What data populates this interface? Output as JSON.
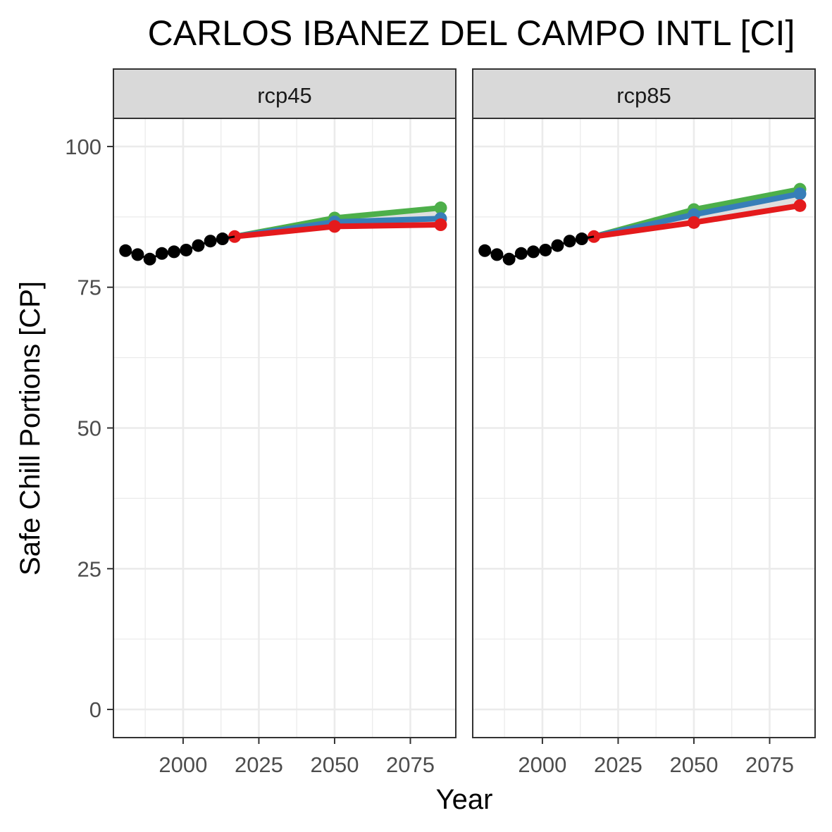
{
  "chart_data": {
    "type": "line",
    "title": "CARLOS IBANEZ DEL CAMPO INTL [CI]",
    "xlabel": "Year",
    "ylabel": "Safe Chill Portions [CP]",
    "xlim": [
      1977,
      2090
    ],
    "ylim": [
      -5,
      105
    ],
    "x_ticks": [
      2000,
      2025,
      2050,
      2075
    ],
    "y_ticks": [
      0,
      25,
      50,
      75,
      100
    ],
    "x_tick_labels": [
      "2000",
      "2025",
      "2050",
      "2075"
    ],
    "y_tick_labels": [
      "0",
      "25",
      "50",
      "75",
      "100"
    ],
    "grid": true,
    "colors": {
      "historic": "#000000",
      "green": "#4DAF4A",
      "blue": "#377EB8",
      "red": "#E41A1C",
      "ribbon": "#D9D9D9",
      "strip_fill": "#D9D9D9",
      "panel_border": "#333333",
      "grid": "#EBEBEB"
    },
    "panels": [
      {
        "label": "rcp45",
        "historic": {
          "x": [
            1981,
            1985,
            1989,
            1993,
            1997,
            2001,
            2005,
            2009,
            2013,
            2017
          ],
          "values": [
            81.5,
            80.8,
            80.0,
            81.0,
            81.3,
            81.6,
            82.4,
            83.2,
            83.6,
            84.0
          ]
        },
        "series": [
          {
            "name": "green",
            "x": [
              2017,
              2050,
              2085
            ],
            "values": [
              84.0,
              87.3,
              89.1
            ]
          },
          {
            "name": "blue",
            "x": [
              2017,
              2050,
              2085
            ],
            "values": [
              84.0,
              86.6,
              87.2
            ]
          },
          {
            "name": "red",
            "x": [
              2017,
              2050,
              2085
            ],
            "values": [
              84.0,
              85.8,
              86.1
            ]
          }
        ]
      },
      {
        "label": "rcp85",
        "historic": {
          "x": [
            1981,
            1985,
            1989,
            1993,
            1997,
            2001,
            2005,
            2009,
            2013,
            2017
          ],
          "values": [
            81.5,
            80.8,
            80.0,
            81.0,
            81.3,
            81.6,
            82.4,
            83.2,
            83.6,
            84.0
          ]
        },
        "series": [
          {
            "name": "green",
            "x": [
              2017,
              2050,
              2085
            ],
            "values": [
              84.0,
              88.8,
              92.4
            ]
          },
          {
            "name": "blue",
            "x": [
              2017,
              2050,
              2085
            ],
            "values": [
              84.0,
              87.9,
              91.6
            ]
          },
          {
            "name": "red",
            "x": [
              2017,
              2050,
              2085
            ],
            "values": [
              84.0,
              86.5,
              89.5
            ]
          }
        ]
      }
    ]
  }
}
